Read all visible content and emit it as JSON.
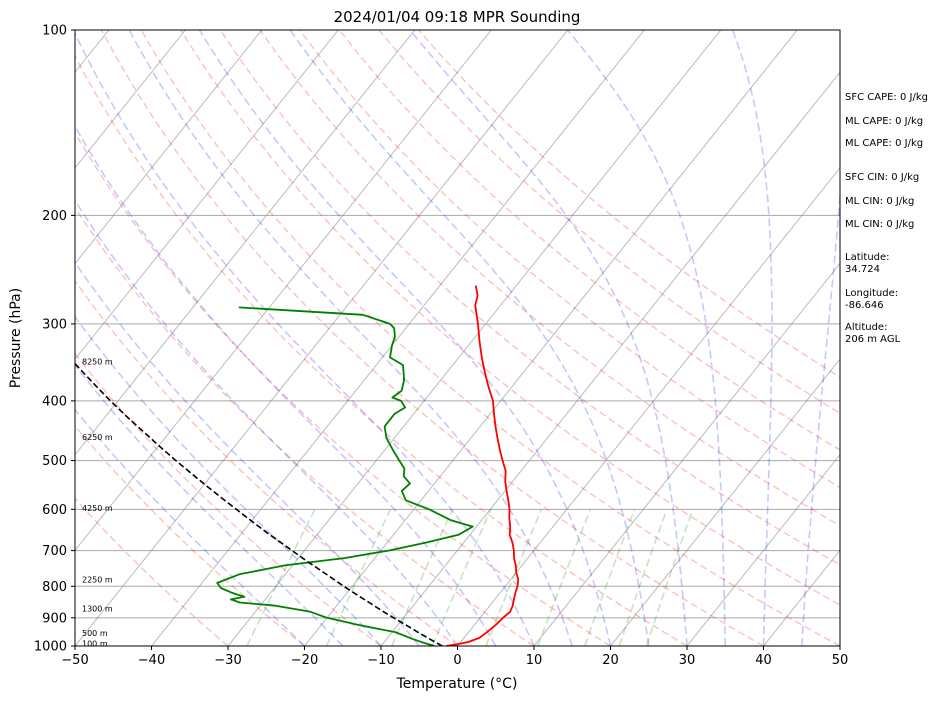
{
  "chart_data": {
    "type": "line",
    "title": "2024/01/04 09:18 MPR Sounding",
    "xlabel": "Temperature (°C)",
    "ylabel": "Pressure (hPa)",
    "xlim": [
      -50,
      50
    ],
    "ylim": [
      1000,
      100
    ],
    "y_scale": "log",
    "skew": "skew-T log-p diagram",
    "x_ticks": [
      "−50",
      "−40",
      "−30",
      "−20",
      "−10",
      "0",
      "10",
      "20",
      "30",
      "40",
      "50"
    ],
    "x_tick_values": [
      -50,
      -40,
      -30,
      -20,
      -10,
      0,
      10,
      20,
      30,
      40,
      50
    ],
    "y_ticks": [
      "100",
      "200",
      "300",
      "400",
      "500",
      "600",
      "700",
      "800",
      "900",
      "1000"
    ],
    "y_tick_values": [
      100,
      200,
      300,
      400,
      500,
      600,
      700,
      800,
      900,
      1000
    ],
    "grid": true,
    "series": [
      {
        "role": "temperature",
        "color": "#ff0000",
        "points": [
          [
            1000,
            -1.5
          ],
          [
            995,
            -0.5
          ],
          [
            985,
            1.0
          ],
          [
            970,
            2.0
          ],
          [
            950,
            2.4
          ],
          [
            925,
            2.8
          ],
          [
            900,
            3.0
          ],
          [
            880,
            3.3
          ],
          [
            860,
            3.0
          ],
          [
            840,
            2.5
          ],
          [
            820,
            2.0
          ],
          [
            800,
            1.6
          ],
          [
            780,
            1.0
          ],
          [
            760,
            0.0
          ],
          [
            740,
            -0.8
          ],
          [
            720,
            -1.8
          ],
          [
            700,
            -2.6
          ],
          [
            680,
            -3.6
          ],
          [
            660,
            -4.8
          ],
          [
            640,
            -5.6
          ],
          [
            620,
            -6.6
          ],
          [
            600,
            -7.5
          ],
          [
            580,
            -8.6
          ],
          [
            560,
            -9.8
          ],
          [
            540,
            -11.0
          ],
          [
            520,
            -12.0
          ],
          [
            500,
            -13.5
          ],
          [
            480,
            -15.0
          ],
          [
            460,
            -16.5
          ],
          [
            440,
            -18.0
          ],
          [
            420,
            -19.5
          ],
          [
            400,
            -21.0
          ],
          [
            380,
            -23.0
          ],
          [
            360,
            -25.0
          ],
          [
            340,
            -27.0
          ],
          [
            320,
            -29.0
          ],
          [
            300,
            -31.0
          ],
          [
            280,
            -33.3
          ],
          [
            270,
            -34.0
          ],
          [
            260,
            -35.3
          ]
        ]
      },
      {
        "role": "dewpoint",
        "color": "#008000",
        "points": [
          [
            1000,
            -3.0
          ],
          [
            990,
            -4.5
          ],
          [
            975,
            -6.5
          ],
          [
            950,
            -9.5
          ],
          [
            925,
            -15.0
          ],
          [
            900,
            -20.0
          ],
          [
            880,
            -22.8
          ],
          [
            860,
            -28.0
          ],
          [
            850,
            -33.0
          ],
          [
            840,
            -34.5
          ],
          [
            832,
            -33.0
          ],
          [
            820,
            -35.0
          ],
          [
            805,
            -37.0
          ],
          [
            790,
            -38.0
          ],
          [
            765,
            -36.0
          ],
          [
            740,
            -31.0
          ],
          [
            720,
            -24.0
          ],
          [
            700,
            -19.0
          ],
          [
            680,
            -15.0
          ],
          [
            660,
            -11.5
          ],
          [
            640,
            -10.5
          ],
          [
            625,
            -14.0
          ],
          [
            600,
            -18.0
          ],
          [
            580,
            -22.0
          ],
          [
            560,
            -23.5
          ],
          [
            545,
            -23.2
          ],
          [
            530,
            -24.8
          ],
          [
            515,
            -25.5
          ],
          [
            500,
            -27.0
          ],
          [
            480,
            -29.0
          ],
          [
            460,
            -31.0
          ],
          [
            440,
            -32.5
          ],
          [
            420,
            -32.5
          ],
          [
            410,
            -31.8
          ],
          [
            400,
            -33.0
          ],
          [
            395,
            -34.5
          ],
          [
            385,
            -34.0
          ],
          [
            370,
            -34.8
          ],
          [
            350,
            -36.5
          ],
          [
            340,
            -39.0
          ],
          [
            325,
            -40.0
          ],
          [
            315,
            -40.5
          ],
          [
            305,
            -41.5
          ],
          [
            300,
            -42.5
          ],
          [
            290,
            -47.0
          ],
          [
            282,
            -64.0
          ]
        ]
      },
      {
        "role": "parcel-profile",
        "color": "#000000",
        "dashed": true,
        "points": [
          [
            1000,
            -2.0
          ],
          [
            975,
            -4.3
          ],
          [
            950,
            -6.6
          ],
          [
            925,
            -8.9
          ],
          [
            900,
            -11.3
          ],
          [
            875,
            -13.7
          ],
          [
            850,
            -16.1
          ],
          [
            825,
            -18.6
          ],
          [
            800,
            -21.1
          ],
          [
            775,
            -23.6
          ],
          [
            750,
            -26.2
          ],
          [
            725,
            -28.9
          ],
          [
            700,
            -31.6
          ],
          [
            675,
            -34.4
          ],
          [
            650,
            -37.3
          ],
          [
            625,
            -40.2
          ],
          [
            600,
            -43.2
          ],
          [
            575,
            -46.3
          ],
          [
            550,
            -49.5
          ],
          [
            525,
            -52.8
          ],
          [
            500,
            -56.2
          ],
          [
            475,
            -59.7
          ],
          [
            450,
            -63.3
          ],
          [
            425,
            -67.1
          ],
          [
            400,
            -71.0
          ],
          [
            375,
            -75.0
          ],
          [
            350,
            -79.2
          ],
          [
            325,
            -83.6
          ],
          [
            303,
            -87.7
          ]
        ]
      }
    ],
    "height_labels": [
      {
        "text": "100 m",
        "pressure": 990
      },
      {
        "text": "500 m",
        "pressure": 952
      },
      {
        "text": "1300 m",
        "pressure": 870
      },
      {
        "text": "2250 m",
        "pressure": 780
      },
      {
        "text": "4250 m",
        "pressure": 597
      },
      {
        "text": "6250 m",
        "pressure": 458
      },
      {
        "text": "8250 m",
        "pressure": 345
      }
    ],
    "reference_lines": {
      "isotherms": {
        "color": "#808080",
        "values": [
          -140,
          -130,
          -120,
          -110,
          -100,
          -90,
          -80,
          -70,
          -60,
          -50,
          -40,
          -30,
          -20,
          -10,
          0,
          10,
          20,
          30,
          40,
          50
        ]
      },
      "dry_adiabats": {
        "color": "#ff0000",
        "theta_c": [
          -30,
          -20,
          -10,
          0,
          10,
          20,
          30,
          40,
          50,
          60,
          70,
          80,
          90,
          100,
          110,
          120
        ]
      },
      "moist_adiabats": {
        "color": "#0000ff",
        "start_temps_c": [
          -20,
          -15,
          -10,
          -5,
          0,
          5,
          10,
          15,
          20,
          25,
          30,
          35,
          40,
          45
        ]
      },
      "mixing_ratio_lines": {
        "color": "#008000",
        "g_per_kg": [
          0.4,
          1,
          2,
          3,
          5,
          8,
          12,
          16,
          20
        ]
      }
    }
  },
  "side_panel": {
    "sfc_cape": "SFC CAPE: 0 J/kg",
    "ml_cape_1": "ML CAPE: 0 J/kg",
    "ml_cape_2": "ML CAPE: 0 J/kg",
    "sfc_cin": "SFC CIN: 0 J/kg",
    "ml_cin_1": "ML CIN: 0 J/kg",
    "ml_cin_2": "ML CIN: 0 J/kg",
    "latitude_label": "Latitude:",
    "latitude_value": "34.724",
    "longitude_label": "Longitude:",
    "longitude_value": "-86.646",
    "altitude_label": "Altitude:",
    "altitude_value": "206 m AGL"
  }
}
